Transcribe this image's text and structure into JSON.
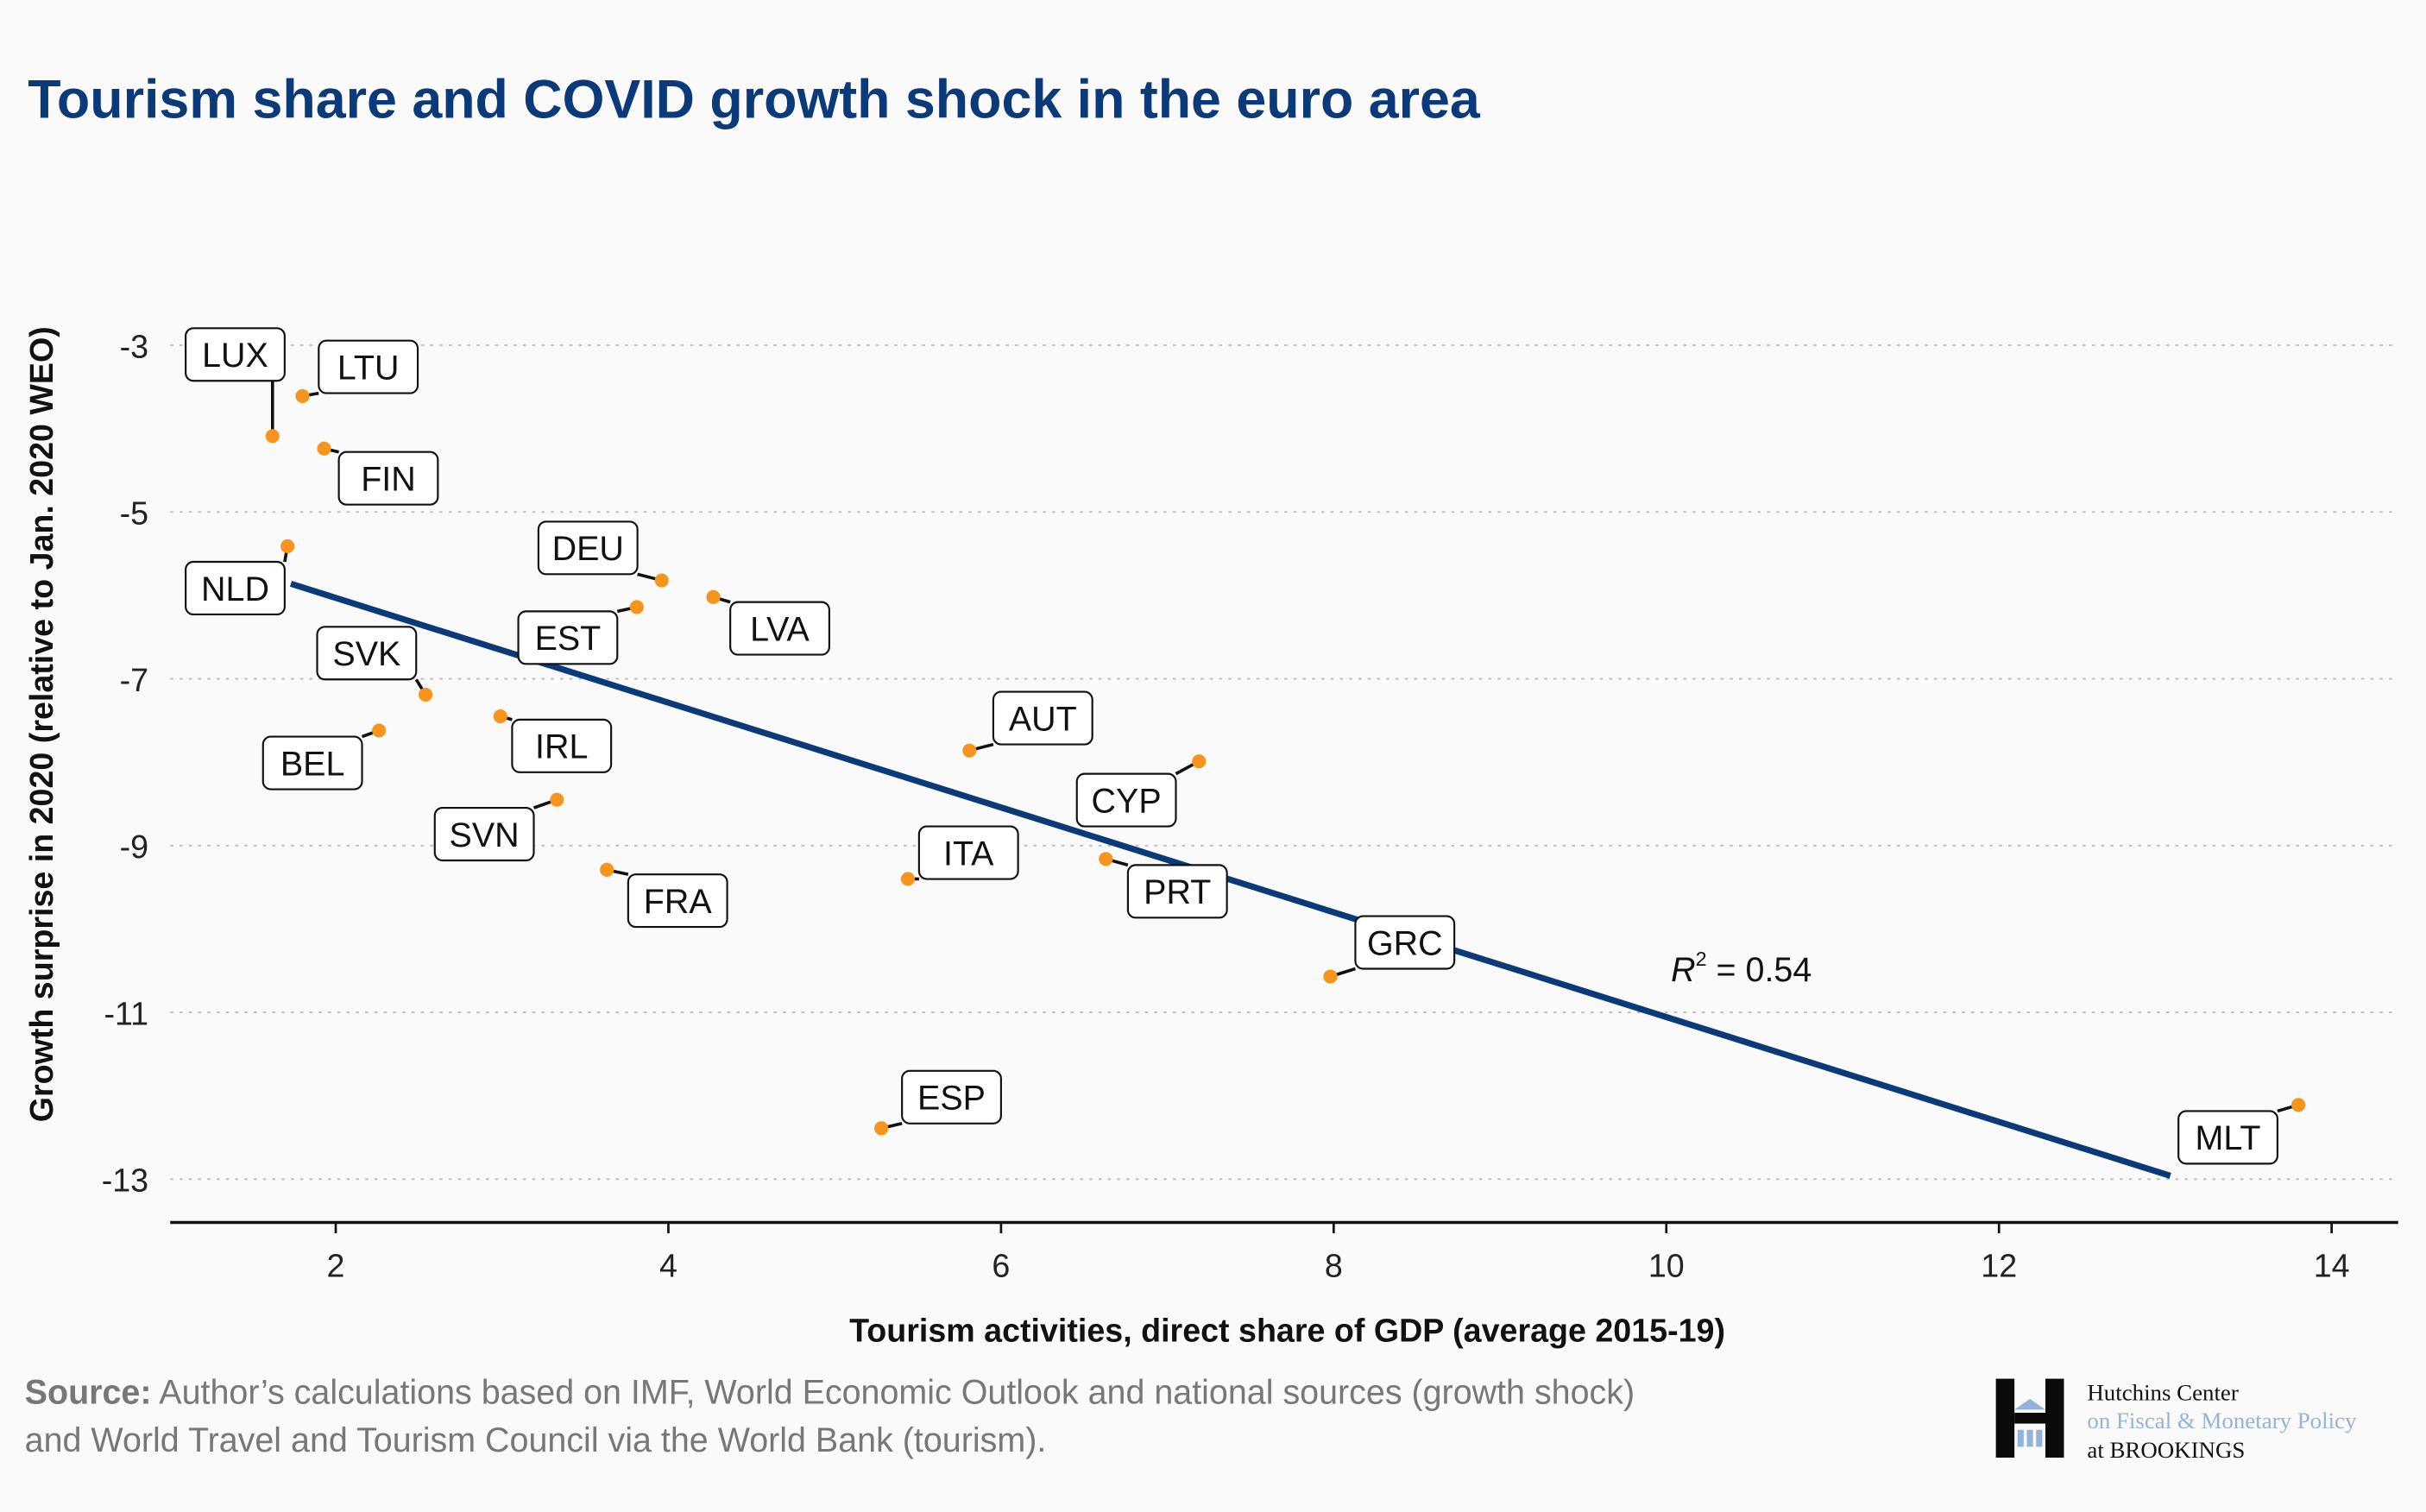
{
  "chart_data": {
    "type": "scatter",
    "title": "Tourism share and COVID growth shock in the euro area",
    "xlabel": "Tourism activities, direct share of GDP (average 2015-19)",
    "ylabel": "Growth surprise in 2020 (relative to Jan. 2020 WEO)",
    "xlim": [
      1.05,
      14.4
    ],
    "ylim": [
      -13.5,
      -2
    ],
    "x_ticks": [
      2,
      4,
      6,
      8,
      10,
      12,
      14
    ],
    "y_ticks": [
      -3,
      -5,
      -7,
      -9,
      -11,
      -13
    ],
    "grid": "horizontal dotted",
    "point_color": "#f7941d",
    "line_color": "#0b3a7a",
    "points": [
      {
        "label": "LUX",
        "x": 1.62,
        "y": -4.09
      },
      {
        "label": "LTU",
        "x": 1.8,
        "y": -3.61
      },
      {
        "label": "FIN",
        "x": 1.93,
        "y": -4.24
      },
      {
        "label": "NLD",
        "x": 1.71,
        "y": -5.41
      },
      {
        "label": "DEU",
        "x": 3.96,
        "y": -5.82
      },
      {
        "label": "EST",
        "x": 3.81,
        "y": -6.14
      },
      {
        "label": "LVA",
        "x": 4.27,
        "y": -6.02
      },
      {
        "label": "SVK",
        "x": 2.54,
        "y": -7.19
      },
      {
        "label": "BEL",
        "x": 2.26,
        "y": -7.62
      },
      {
        "label": "IRL",
        "x": 2.99,
        "y": -7.45
      },
      {
        "label": "SVN",
        "x": 3.33,
        "y": -8.45
      },
      {
        "label": "FRA",
        "x": 3.63,
        "y": -9.29
      },
      {
        "label": "AUT",
        "x": 5.81,
        "y": -7.86
      },
      {
        "label": "CYP",
        "x": 7.19,
        "y": -7.99
      },
      {
        "label": "ITA",
        "x": 5.44,
        "y": -9.4
      },
      {
        "label": "PRT",
        "x": 6.63,
        "y": -9.16
      },
      {
        "label": "GRC",
        "x": 7.98,
        "y": -10.57
      },
      {
        "label": "ESP",
        "x": 5.28,
        "y": -12.39
      },
      {
        "label": "MLT",
        "x": 13.8,
        "y": -12.11
      }
    ],
    "trend_line": {
      "x": [
        1.73,
        13.03
      ],
      "y": [
        -5.86,
        -12.96
      ]
    },
    "annotation": {
      "r_symbol": "R",
      "sup": "2",
      "text": " = 0.54"
    }
  },
  "source": {
    "bold": "Source:",
    "line1": " Author’s calculations based on IMF, World Economic Outlook and national sources (growth shock)",
    "line2": "and World Travel and Tourism Council via the World Bank (tourism)."
  },
  "logo": {
    "line1": "Hutchins Center",
    "line2": "on Fiscal & Monetary Policy",
    "line3": "at BROOKINGS"
  }
}
